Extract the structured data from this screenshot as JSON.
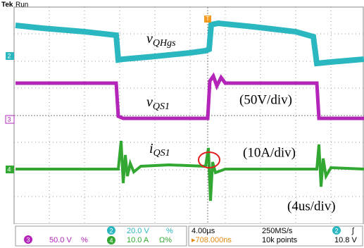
{
  "header": {
    "brand": "Tek",
    "state": "Run",
    "trigger_marker": "T"
  },
  "traces": {
    "vqhgs": {
      "main": "v",
      "sub": "QHgs"
    },
    "vqs1": {
      "main": "v",
      "sub": "QS1"
    },
    "iqs1": {
      "main": "i",
      "sub": "QS1"
    }
  },
  "annotations": {
    "ch3_scale": "(50V/div)",
    "ch4_scale": "(10A/div)",
    "time_scale": "(4us/div)"
  },
  "channel_markers": [
    "2",
    "3",
    "4"
  ],
  "status_bar": {
    "ch3_num": "3",
    "ch3_scale": "50.0 V",
    "ch3_flag": "%",
    "ch2_num": "2",
    "ch2_scale": "20.0 V",
    "ch2_flag": "%",
    "ch4_num": "4",
    "ch4_scale": "10.0 A",
    "ch4_flag": "Ω%",
    "timebase": "4.00µs",
    "trig_pos": "▸708.000ns",
    "sample_rate": "250MS/s",
    "record": "10k points",
    "trig_ch": "2",
    "trig_slope": "ʃ",
    "trig_level": "10.8 V"
  }
}
